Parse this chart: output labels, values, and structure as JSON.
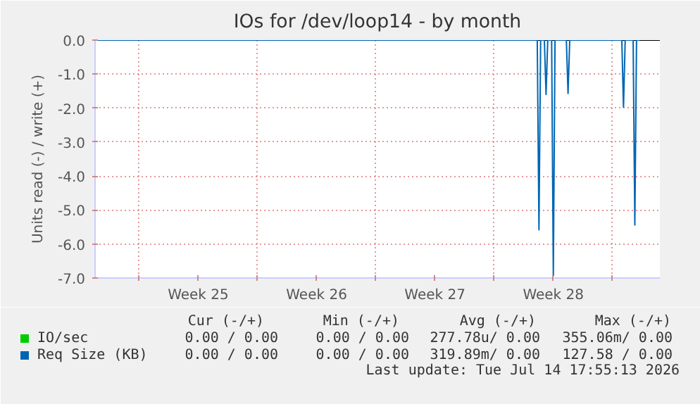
{
  "chart_data": {
    "type": "line",
    "title": "IOs for /dev/loop14 - by month",
    "ylabel": "Units read (-) / write (+)",
    "xlim": [
      "2026-06-12T09:36",
      "2026-07-15T19:12"
    ],
    "xticks": [
      {
        "value": "2026-06-15",
        "label": null
      },
      {
        "value": "2026-06-18T12:00",
        "label": "Week 25"
      },
      {
        "value": "2026-06-22",
        "label": null
      },
      {
        "value": "2026-06-25T12:00",
        "label": "Week 26"
      },
      {
        "value": "2026-06-29",
        "label": null
      },
      {
        "value": "2026-07-02T12:00",
        "label": "Week 27"
      },
      {
        "value": "2026-07-06",
        "label": null
      },
      {
        "value": "2026-07-09T12:00",
        "label": "Week 28"
      },
      {
        "value": "2026-07-13",
        "label": null
      }
    ],
    "ylim": [
      -7,
      0
    ],
    "yticks": [
      {
        "value": 0,
        "label": "0.0"
      },
      {
        "value": -1,
        "label": "-1.0"
      },
      {
        "value": -2,
        "label": "-2.0"
      },
      {
        "value": -3,
        "label": "-3.0"
      },
      {
        "value": -4,
        "label": "-4.0"
      },
      {
        "value": -5,
        "label": "-5.0"
      },
      {
        "value": -6,
        "label": "-6.0"
      },
      {
        "value": -7,
        "label": "-7.0"
      }
    ],
    "grid": true,
    "legend": "bottom left",
    "ref_lines": [
      {
        "axis": "y",
        "value": 0,
        "color": "#000000"
      }
    ],
    "series": [
      {
        "name": "IO/sec",
        "color": "#00cc00"
      },
      {
        "name": "Req Size (KB)",
        "color": "#0066b3",
        "x": [
          "2026-06-12T09:36",
          "2026-07-08T13:12",
          "2026-07-08T15:36",
          "2026-07-08T18:00",
          "2026-07-08T23:17",
          "2026-07-09T01:41",
          "2026-07-09T04:05",
          "2026-07-09T09:36",
          "2026-07-09T12:00",
          "2026-07-09T14:24",
          "2026-07-10T06:29",
          "2026-07-10T08:53",
          "2026-07-10T11:17",
          "2026-07-13T13:12",
          "2026-07-13T15:36",
          "2026-07-13T18:00",
          "2026-07-14T05:17",
          "2026-07-14T07:41",
          "2026-07-14T10:05",
          "2026-07-14T14:24"
        ],
        "values": [
          0,
          0,
          -5.58,
          0,
          0,
          -1.6,
          0,
          0,
          -6.93,
          0,
          0,
          -1.57,
          0,
          0,
          -1.97,
          0,
          0,
          -5.44,
          0,
          0
        ]
      }
    ],
    "annotations": [
      "Cur (-/+)",
      "Min (-/+)",
      "Avg (-/+)",
      "Max (-/+)",
      "0.00 / 0.00",
      "0.00 / 0.00",
      "277.78u/ 0.00",
      "355.06m/ 0.00",
      "0.00 / 0.00",
      "0.00 / 0.00",
      "319.89m/ 0.00",
      "127.58 / 0.00",
      "Last update: Tue Jul 14 17:55:13 2026"
    ]
  }
}
